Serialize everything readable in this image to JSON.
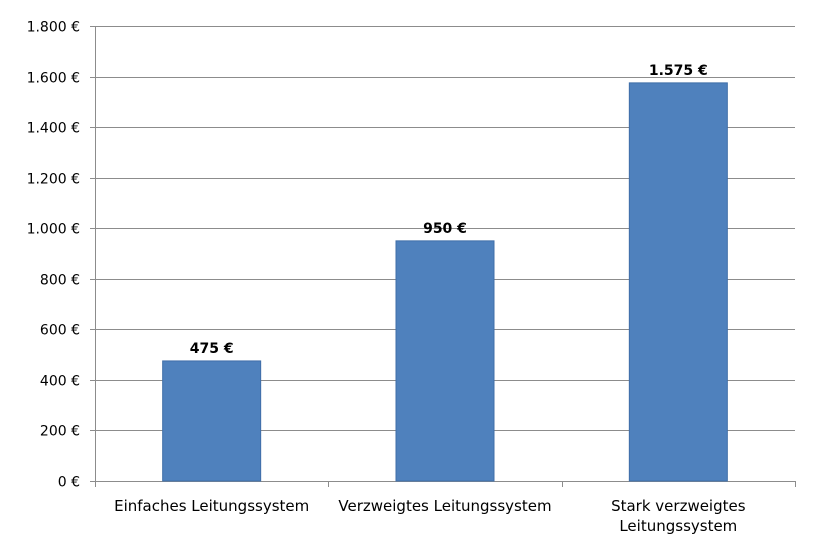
{
  "chart_data": {
    "type": "bar",
    "categories": [
      [
        "Einfaches Leitungssystem"
      ],
      [
        "Verzweigtes Leitungssystem"
      ],
      [
        "Stark verzweigtes",
        "Leitungssystem"
      ]
    ],
    "values": [
      475,
      950,
      1575
    ],
    "data_labels": [
      "475 €",
      "950 €",
      "1.575 €"
    ],
    "y_ticks": [
      0,
      200,
      400,
      600,
      800,
      1000,
      1200,
      1400,
      1600,
      1800
    ],
    "y_tick_labels": [
      "0 €",
      "200 €",
      "400 €",
      "600 €",
      "800 €",
      "1.000 €",
      "1.200 €",
      "1.400 €",
      "1.600 €",
      "1.800 €"
    ],
    "ylim": [
      0,
      1800
    ],
    "grid": true,
    "legend": "none",
    "colors": {
      "bar": "#4f81bd",
      "bar_stroke": "#3f6ea8",
      "grid": "#8c8c8c"
    }
  }
}
